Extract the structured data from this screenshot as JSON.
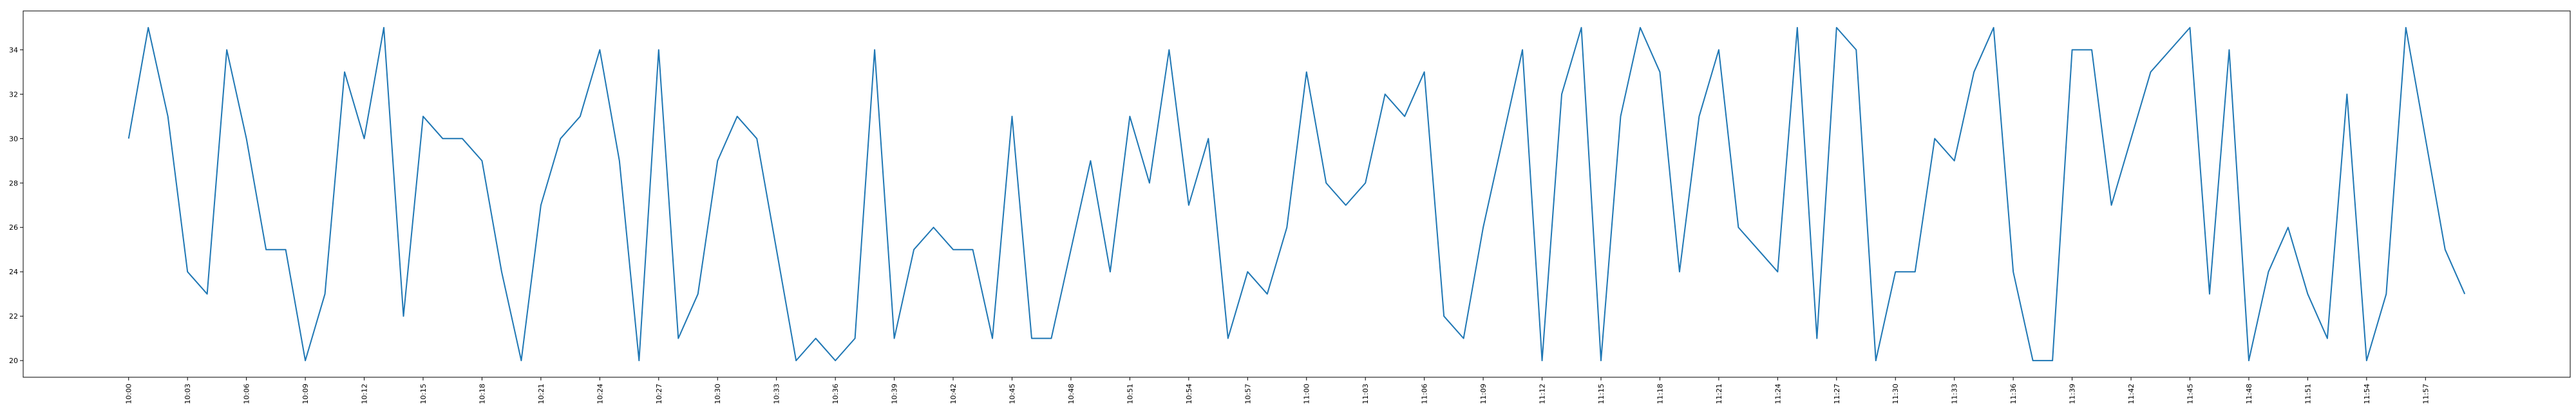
{
  "chart_data": {
    "type": "line",
    "title": "",
    "xlabel": "",
    "ylabel": "",
    "x_tick_labels": [
      "10:00",
      "10:03",
      "10:06",
      "10:09",
      "10:12",
      "10:15",
      "10:18",
      "10:21",
      "10:24",
      "10:27",
      "10:30",
      "10:33",
      "10:36",
      "10:39",
      "10:42",
      "10:45",
      "10:48",
      "10:51",
      "10:54",
      "10:57",
      "11:00",
      "11:03",
      "11:06",
      "11:09",
      "11:12",
      "11:15",
      "11:18",
      "11:21",
      "11:24",
      "11:27",
      "11:30",
      "11:33",
      "11:36",
      "11:39",
      "11:42",
      "11:45",
      "11:48",
      "11:51",
      "11:54",
      "11:57"
    ],
    "y_ticks": [
      20,
      22,
      24,
      26,
      28,
      30,
      32,
      34
    ],
    "ylim": [
      19.25,
      35.75
    ],
    "grid": false,
    "legend": "none",
    "series": [
      {
        "color": "#1f77b4",
        "values": [
          30,
          35,
          31,
          24,
          23,
          34,
          30,
          25,
          25,
          20,
          23,
          33,
          30,
          35,
          22,
          31,
          30,
          30,
          29,
          24,
          20,
          27,
          30,
          31,
          34,
          29,
          20,
          34,
          21,
          23,
          29,
          31,
          30,
          25,
          20,
          21,
          20,
          21,
          34,
          21,
          25,
          26,
          25,
          25,
          21,
          31,
          21,
          21,
          25,
          29,
          24,
          31,
          28,
          34,
          27,
          30,
          21,
          24,
          23,
          26,
          33,
          28,
          27,
          28,
          32,
          31,
          33,
          22,
          21,
          26,
          30,
          34,
          20,
          32,
          35,
          20,
          31,
          35,
          33,
          24,
          31,
          34,
          26,
          25,
          24,
          35,
          21,
          35,
          34,
          20,
          24,
          24,
          30,
          29,
          33,
          35,
          24,
          20,
          20,
          34,
          34,
          27,
          30,
          33,
          34,
          35,
          23,
          34,
          20,
          24,
          26,
          23,
          21,
          32,
          20,
          23,
          35,
          30,
          25,
          23
        ]
      }
    ]
  }
}
